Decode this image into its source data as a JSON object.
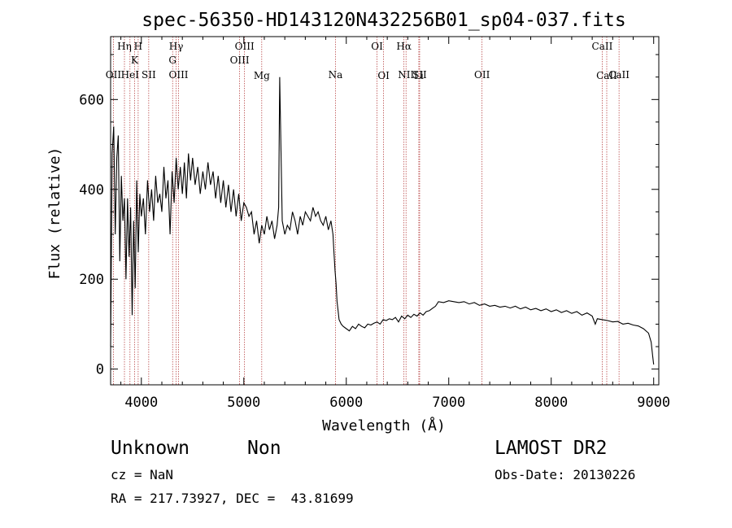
{
  "chart_data": {
    "type": "line",
    "title": "spec-56350-HD143120N432256B01_sp04-037.fits",
    "xlabel": "Wavelength (Å)",
    "ylabel": "Flux (relative)",
    "xlim": [
      3700,
      9050
    ],
    "ylim": [
      -35,
      740
    ],
    "x_ticks": [
      4000,
      5000,
      6000,
      7000,
      8000,
      9000
    ],
    "y_ticks": [
      0,
      200,
      400,
      600
    ],
    "line_color": "#000000",
    "marker_color": "#b03030",
    "series": [
      {
        "x": [
          3700,
          3715,
          3730,
          3745,
          3760,
          3775,
          3790,
          3805,
          3820,
          3835,
          3850,
          3865,
          3880,
          3895,
          3910,
          3925,
          3940,
          3955,
          3970,
          3985,
          4000,
          4020,
          4040,
          4060,
          4080,
          4100,
          4120,
          4140,
          4160,
          4180,
          4200,
          4220,
          4240,
          4260,
          4280,
          4300,
          4320,
          4340,
          4360,
          4380,
          4400,
          4420,
          4440,
          4460,
          4480,
          4500,
          4525,
          4550,
          4575,
          4600,
          4625,
          4650,
          4675,
          4700,
          4725,
          4750,
          4775,
          4800,
          4825,
          4850,
          4875,
          4900,
          4925,
          4950,
          4975,
          5000,
          5025,
          5050,
          5075,
          5100,
          5125,
          5150,
          5175,
          5200,
          5225,
          5250,
          5275,
          5300,
          5325,
          5340,
          5350,
          5375,
          5400,
          5425,
          5450,
          5475,
          5500,
          5525,
          5550,
          5575,
          5600,
          5625,
          5650,
          5675,
          5700,
          5725,
          5750,
          5775,
          5800,
          5825,
          5850,
          5870,
          5880,
          5890,
          5900,
          5910,
          5920,
          5930,
          5950,
          5970,
          6000,
          6030,
          6060,
          6090,
          6120,
          6150,
          6180,
          6210,
          6240,
          6270,
          6300,
          6330,
          6360,
          6390,
          6420,
          6450,
          6480,
          6510,
          6540,
          6570,
          6600,
          6630,
          6660,
          6690,
          6720,
          6750,
          6780,
          6810,
          6840,
          6870,
          6900,
          6950,
          7000,
          7050,
          7100,
          7150,
          7200,
          7250,
          7300,
          7350,
          7400,
          7450,
          7500,
          7550,
          7600,
          7650,
          7700,
          7750,
          7800,
          7850,
          7900,
          7950,
          8000,
          8050,
          8100,
          8150,
          8200,
          8250,
          8300,
          8350,
          8400,
          8430,
          8450,
          8500,
          8550,
          8600,
          8650,
          8700,
          8750,
          8800,
          8850,
          8900,
          8950,
          8975,
          8990,
          9000
        ],
        "y": [
          50,
          480,
          540,
          300,
          470,
          520,
          240,
          430,
          330,
          380,
          200,
          380,
          250,
          360,
          120,
          330,
          180,
          420,
          260,
          390,
          340,
          380,
          300,
          420,
          350,
          400,
          330,
          430,
          370,
          390,
          350,
          450,
          380,
          420,
          300,
          440,
          370,
          470,
          400,
          450,
          390,
          460,
          380,
          480,
          420,
          470,
          410,
          450,
          390,
          440,
          400,
          460,
          410,
          440,
          380,
          430,
          370,
          420,
          360,
          410,
          350,
          400,
          340,
          390,
          330,
          370,
          360,
          340,
          350,
          300,
          330,
          280,
          320,
          300,
          340,
          310,
          330,
          290,
          320,
          360,
          650,
          330,
          300,
          320,
          310,
          350,
          330,
          300,
          340,
          320,
          350,
          340,
          330,
          360,
          340,
          350,
          330,
          320,
          340,
          310,
          330,
          300,
          260,
          220,
          190,
          150,
          130,
          110,
          100,
          95,
          90,
          85,
          95,
          90,
          100,
          95,
          92,
          100,
          98,
          102,
          105,
          100,
          110,
          108,
          112,
          110,
          115,
          105,
          118,
          112,
          120,
          115,
          122,
          118,
          125,
          120,
          128,
          130,
          135,
          140,
          150,
          148,
          152,
          150,
          148,
          150,
          145,
          148,
          142,
          145,
          140,
          142,
          138,
          140,
          136,
          140,
          134,
          138,
          132,
          135,
          130,
          134,
          128,
          132,
          126,
          130,
          124,
          128,
          120,
          125,
          118,
          100,
          112,
          110,
          108,
          105,
          106,
          100,
          102,
          98,
          96,
          90,
          80,
          60,
          30,
          10
        ]
      }
    ],
    "lines": [
      {
        "label": "OII",
        "x": 3727,
        "row": 2
      },
      {
        "label": "Hη",
        "x": 3835,
        "row": 0
      },
      {
        "label": "HeI",
        "x": 3889,
        "row": 2
      },
      {
        "label": "K",
        "x": 3934,
        "row": 1
      },
      {
        "label": "H",
        "x": 3969,
        "row": 0
      },
      {
        "label": "SII",
        "x": 4072,
        "row": 2
      },
      {
        "label": "Hγ",
        "x": 4340,
        "row": 0
      },
      {
        "label": "G",
        "x": 4305,
        "row": 1
      },
      {
        "label": "OIII",
        "x": 4363,
        "row": 2
      },
      {
        "label": "OIII",
        "x": 4959,
        "row": 1
      },
      {
        "label": "OIII",
        "x": 5007,
        "row": 0
      },
      {
        "label": "Mg",
        "x": 5175,
        "row": 3
      },
      {
        "label": "Na",
        "x": 5894,
        "row": 2
      },
      {
        "label": "OI",
        "x": 6300,
        "row": 0
      },
      {
        "label": "OI",
        "x": 6364,
        "row": 3
      },
      {
        "label": "Hα",
        "x": 6563,
        "row": 0
      },
      {
        "label": "NII",
        "x": 6583,
        "row": 2
      },
      {
        "label": "SII",
        "x": 6716,
        "row": 2
      },
      {
        "label": "Li",
        "x": 6708,
        "row": 3
      },
      {
        "label": "OII",
        "x": 7325,
        "row": 2
      },
      {
        "label": "CaII",
        "x": 8498,
        "row": 0
      },
      {
        "label": "CaII",
        "x": 8542,
        "row": 3
      },
      {
        "label": "CaII",
        "x": 8662,
        "row": 2
      }
    ]
  },
  "footer": {
    "object_class": "Unknown",
    "subclass": "Non",
    "survey": "LAMOST DR2",
    "cz": "cz = NaN",
    "obs_date": "Obs-Date: 20130226",
    "coords": "RA = 217.73927, DEC =  43.81699"
  }
}
